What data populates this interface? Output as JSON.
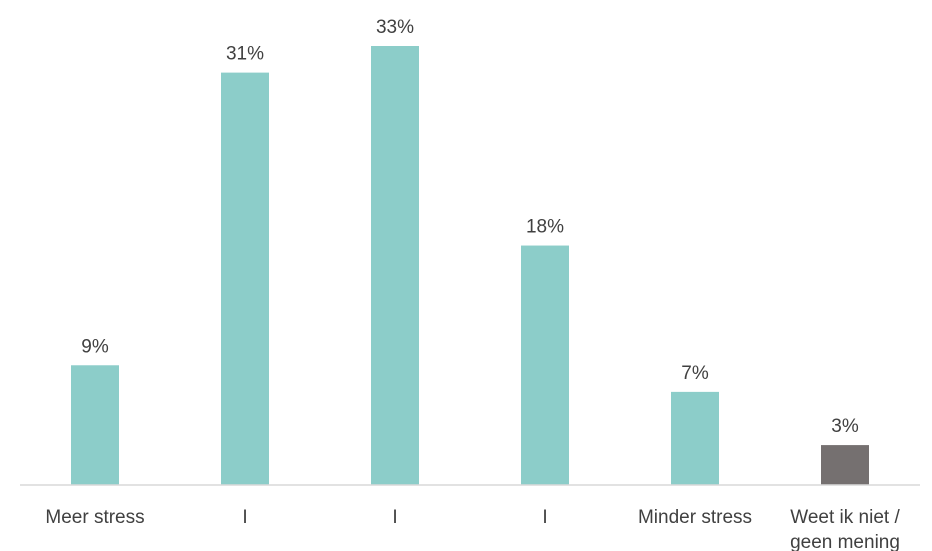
{
  "chart_data": {
    "type": "bar",
    "categories": [
      [
        "Meer stress"
      ],
      [
        "I"
      ],
      [
        "I"
      ],
      [
        "I"
      ],
      [
        "Minder stress"
      ],
      [
        "Weet ik niet /",
        "geen mening"
      ]
    ],
    "values": [
      9,
      31,
      33,
      18,
      7,
      3
    ],
    "value_labels": [
      "9%",
      "31%",
      "33%",
      "18%",
      "7%",
      "3%"
    ],
    "bar_colors": [
      "#8ccdc9",
      "#8ccdc9",
      "#8ccdc9",
      "#8ccdc9",
      "#8ccdc9",
      "#757070"
    ],
    "axis_color": "#d9d9d9",
    "ylim": [
      0,
      33
    ],
    "grid": false,
    "legend": "none",
    "title": "",
    "xlabel": "",
    "ylabel": ""
  }
}
